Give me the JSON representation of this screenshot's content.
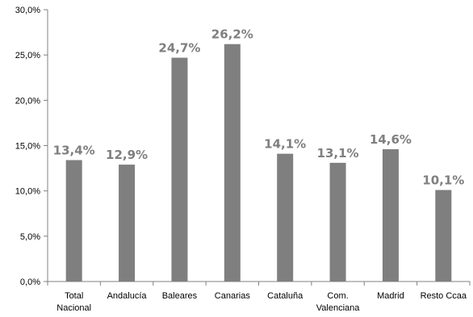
{
  "chart_data": {
    "type": "bar",
    "categories": [
      [
        "Total",
        "Nacional"
      ],
      [
        "Andalucía"
      ],
      [
        "Baleares"
      ],
      [
        "Canarias"
      ],
      [
        "Cataluña"
      ],
      [
        "Com.",
        "Valenciana"
      ],
      [
        "Madrid"
      ],
      [
        "Resto Ccaa"
      ]
    ],
    "values": [
      13.4,
      12.9,
      24.7,
      26.2,
      14.1,
      13.1,
      14.6,
      10.1
    ],
    "data_labels": [
      "13,4%",
      "12,9%",
      "24,7%",
      "26,2%",
      "14,1%",
      "13,1%",
      "14,6%",
      "10,1%"
    ],
    "y_ticks": [
      0,
      5,
      10,
      15,
      20,
      25,
      30
    ],
    "y_tick_labels": [
      "0,0%",
      "5,0%",
      "10,0%",
      "15,0%",
      "20,0%",
      "25,0%",
      "30,0%"
    ],
    "ylim": [
      0,
      30
    ],
    "grid": false,
    "legend": false,
    "bar_color": "#7f7f7f",
    "label_color": "#7f7f7f"
  }
}
